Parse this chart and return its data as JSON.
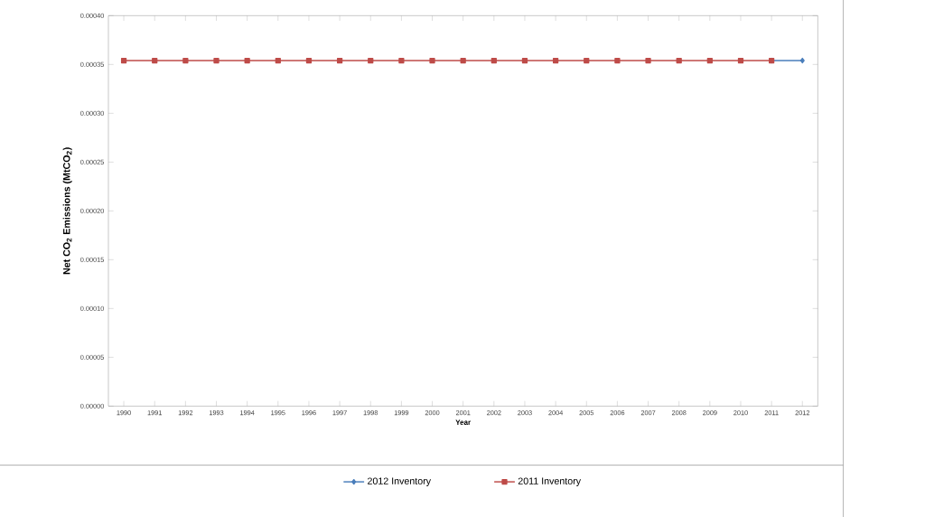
{
  "chart_data": {
    "type": "line",
    "xlabel": "Year",
    "ylabel": "Net CO$_{2}$ Emissions (MtCO$_{2}$)",
    "categories": [
      "1990",
      "1991",
      "1992",
      "1993",
      "1994",
      "1995",
      "1996",
      "1997",
      "1998",
      "1999",
      "2000",
      "2001",
      "2002",
      "2003",
      "2004",
      "2005",
      "2006",
      "2007",
      "2008",
      "2009",
      "2010",
      "2011",
      "2012"
    ],
    "series": [
      {
        "name": "2012 Inventory",
        "color": "#4a7ebb",
        "marker": "diamond",
        "values": [
          null,
          null,
          null,
          null,
          null,
          null,
          null,
          null,
          null,
          null,
          null,
          null,
          null,
          null,
          null,
          null,
          null,
          null,
          null,
          null,
          null,
          0.000354,
          0.000354
        ]
      },
      {
        "name": "2011 Inventory",
        "color": "#be4b48",
        "marker": "square",
        "values": [
          0.000354,
          0.000354,
          0.000354,
          0.000354,
          0.000354,
          0.000354,
          0.000354,
          0.000354,
          0.000354,
          0.000354,
          0.000354,
          0.000354,
          0.000354,
          0.000354,
          0.000354,
          0.000354,
          0.000354,
          0.000354,
          0.000354,
          0.000354,
          0.000354,
          0.000354,
          null
        ]
      }
    ],
    "ylim": [
      0,
      0.0004
    ],
    "yticks": [
      {
        "value": 0,
        "label": "0.00000"
      },
      {
        "value": 5e-05,
        "label": "0.00005"
      },
      {
        "value": 0.0001,
        "label": "0.00010"
      },
      {
        "value": 0.00015,
        "label": "0.00015"
      },
      {
        "value": 0.0002,
        "label": "0.00020"
      },
      {
        "value": 0.00025,
        "label": "0.00025"
      },
      {
        "value": 0.0003,
        "label": "0.00030"
      },
      {
        "value": 0.00035,
        "label": "0.00035"
      },
      {
        "value": 0.0004,
        "label": "0.00040"
      }
    ],
    "legend": "bottom",
    "grid": false
  }
}
